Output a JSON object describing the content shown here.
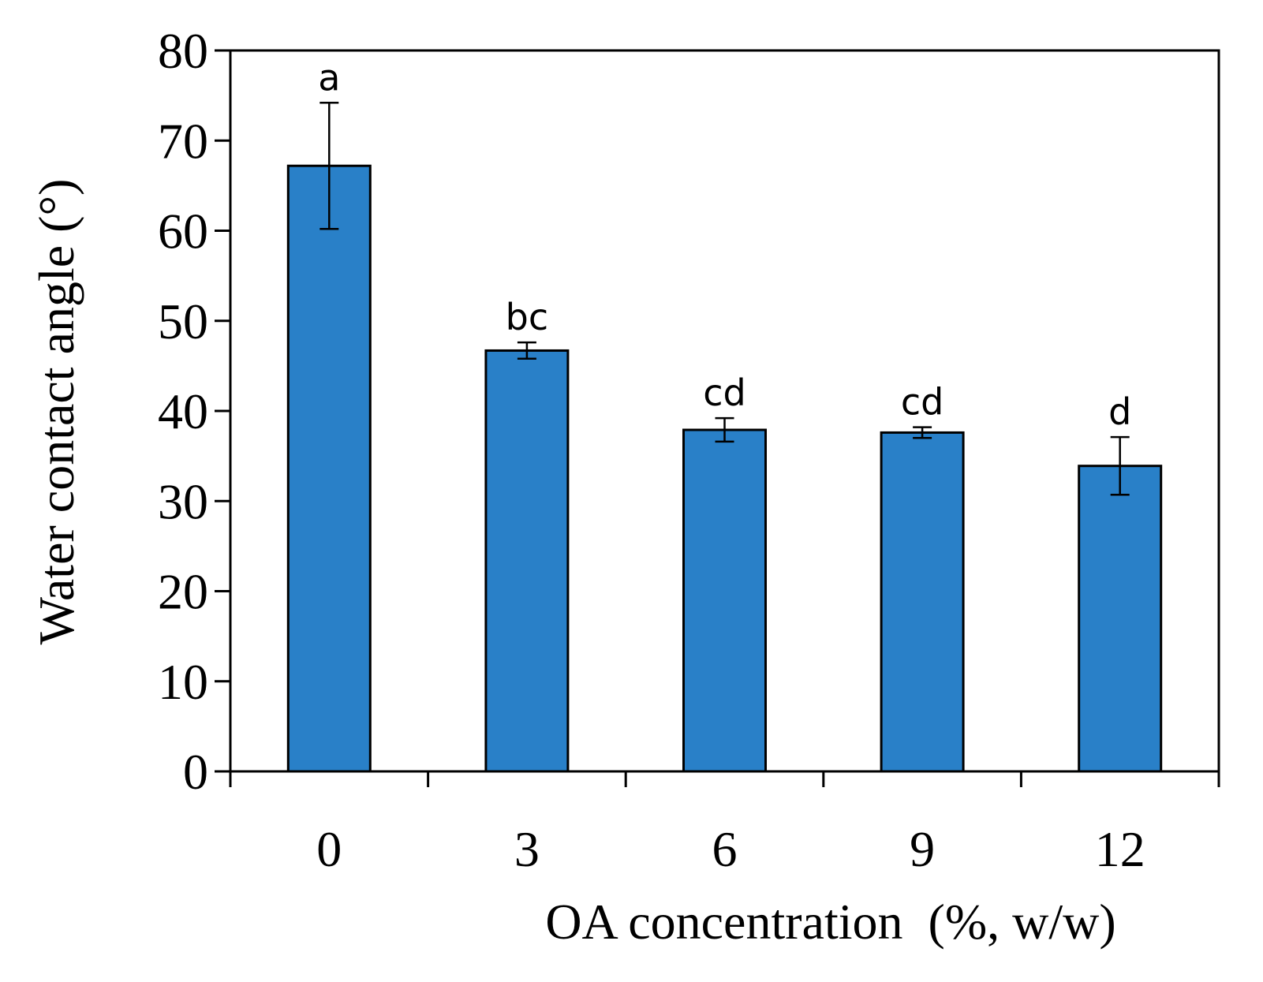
{
  "chart_data": {
    "type": "bar",
    "title": "",
    "xlabel": "OA concentration  (%, w/w)",
    "ylabel": "Water contact  angle  (°)",
    "ylim": [
      0,
      80
    ],
    "yticks": [
      0,
      10,
      20,
      30,
      40,
      50,
      60,
      70,
      80
    ],
    "categories": [
      "0",
      "3",
      "6",
      "9",
      "12"
    ],
    "values": [
      67.2,
      46.7,
      37.9,
      37.6,
      33.9
    ],
    "errors": [
      7.0,
      0.9,
      1.3,
      0.6,
      3.2
    ],
    "significance_labels": [
      "a",
      "bc",
      "cd",
      "cd",
      "d"
    ],
    "grid": false,
    "legend": "none",
    "colors": {
      "bar": "#2980c8",
      "edge": "#000000"
    }
  }
}
